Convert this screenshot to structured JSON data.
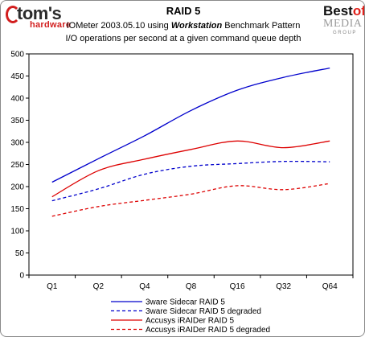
{
  "header": {
    "logo_left_main": "tom's",
    "logo_left_sub": "hardware",
    "logo_right_best": "Best",
    "logo_right_of": "of",
    "logo_right_media": "MEDIA",
    "logo_right_group": "GROUP"
  },
  "chart_data": {
    "type": "line",
    "title": "RAID 5",
    "subtitle_prefix": "IOMeter 2003.05.10 using",
    "subtitle_emphasis": "Workstation",
    "subtitle_suffix": "Benchmark Pattern",
    "subtitle2": "I/O operations per second at a given command queue depth",
    "xlabel": "",
    "ylabel": "",
    "categories": [
      "Q1",
      "Q2",
      "Q4",
      "Q8",
      "Q16",
      "Q32",
      "Q64"
    ],
    "ylim": [
      0,
      500
    ],
    "yticks": [
      0,
      50,
      100,
      150,
      200,
      250,
      300,
      350,
      400,
      450,
      500
    ],
    "grid": false,
    "legend_position": "bottom",
    "series": [
      {
        "name": "3ware Sidecar RAID 5",
        "color": "#0000cc",
        "dash": "solid",
        "values": [
          210,
          263,
          315,
          372,
          418,
          447,
          468
        ]
      },
      {
        "name": "3ware Sidecar RAID 5 degraded",
        "color": "#0000cc",
        "dash": "dashed",
        "values": [
          168,
          195,
          228,
          246,
          252,
          257,
          256
        ]
      },
      {
        "name": "Accusys iRAIDer RAID 5",
        "color": "#dd0000",
        "dash": "solid",
        "values": [
          177,
          236,
          262,
          284,
          303,
          288,
          303
        ]
      },
      {
        "name": "Accusys iRAIDer RAID 5 degraded",
        "color": "#dd0000",
        "dash": "dashed",
        "values": [
          133,
          155,
          169,
          183,
          202,
          193,
          207
        ]
      }
    ]
  }
}
